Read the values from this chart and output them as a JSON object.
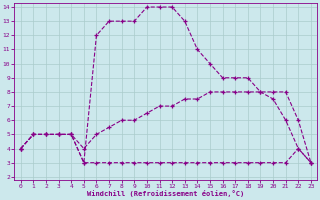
{
  "xlabel": "Windchill (Refroidissement éolien,°C)",
  "background_color": "#cce8ec",
  "grid_color": "#aacccc",
  "line_color": "#880088",
  "xlim_min": -0.5,
  "xlim_max": 23.5,
  "ylim_min": 1.8,
  "ylim_max": 14.3,
  "xticks": [
    0,
    1,
    2,
    3,
    4,
    5,
    6,
    7,
    8,
    9,
    10,
    11,
    12,
    13,
    14,
    15,
    16,
    17,
    18,
    19,
    20,
    21,
    22,
    23
  ],
  "yticks": [
    2,
    3,
    4,
    5,
    6,
    7,
    8,
    9,
    10,
    11,
    12,
    13,
    14
  ],
  "line1_x": [
    0,
    1,
    2,
    3,
    4,
    5,
    6,
    7,
    8,
    9,
    10,
    11,
    12,
    13,
    14,
    15,
    16,
    17,
    18,
    19,
    20,
    21,
    22,
    23
  ],
  "line1_y": [
    4,
    5,
    5,
    5,
    5,
    3,
    12,
    13,
    13,
    13,
    14,
    14,
    14,
    13,
    11,
    10,
    9,
    9,
    9,
    8,
    7.5,
    6,
    4,
    3
  ],
  "line2_x": [
    0,
    1,
    2,
    3,
    4,
    5,
    6,
    7,
    8,
    9,
    10,
    11,
    12,
    13,
    14,
    15,
    16,
    17,
    18,
    19,
    20,
    21,
    22,
    23
  ],
  "line2_y": [
    4,
    5,
    5,
    5,
    5,
    3,
    3,
    3,
    3,
    3,
    3,
    3,
    3,
    3,
    3,
    3,
    3,
    3,
    3,
    3,
    3,
    3,
    4,
    3
  ],
  "line3_x": [
    0,
    1,
    2,
    3,
    4,
    5,
    6,
    7,
    8,
    9,
    10,
    11,
    12,
    13,
    14,
    15,
    16,
    17,
    18,
    19,
    20,
    21,
    22,
    23
  ],
  "line3_y": [
    4,
    5,
    5,
    5,
    5,
    4,
    5,
    5.5,
    6,
    6,
    6.5,
    7,
    7,
    7.5,
    7.5,
    8,
    8,
    8,
    8,
    8,
    8,
    8,
    6,
    3
  ]
}
